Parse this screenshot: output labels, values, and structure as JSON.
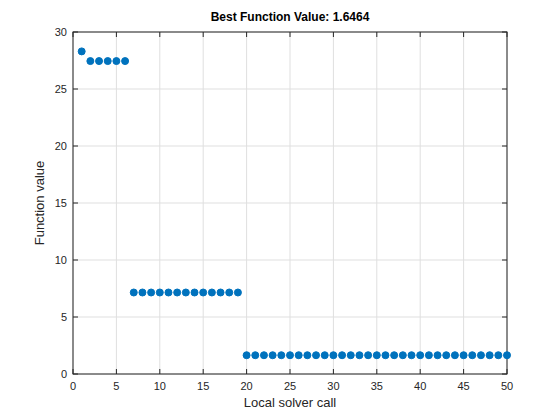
{
  "chart_data": {
    "type": "scatter",
    "title": "Best Function Value: 1.6464",
    "x_label": "Local solver call",
    "y_label": "Function value",
    "x": [
      1,
      2,
      3,
      4,
      5,
      6,
      7,
      8,
      9,
      10,
      11,
      12,
      13,
      14,
      15,
      16,
      17,
      18,
      19,
      20,
      21,
      22,
      23,
      24,
      25,
      26,
      27,
      28,
      29,
      30,
      31,
      32,
      33,
      34,
      35,
      36,
      37,
      38,
      39,
      40,
      41,
      42,
      43,
      44,
      45,
      46,
      47,
      48,
      49,
      50
    ],
    "values": [
      28.3,
      27.45,
      27.45,
      27.45,
      27.45,
      27.45,
      7.15,
      7.15,
      7.15,
      7.15,
      7.15,
      7.15,
      7.15,
      7.15,
      7.15,
      7.15,
      7.15,
      7.15,
      7.15,
      1.6464,
      1.6464,
      1.6464,
      1.6464,
      1.6464,
      1.6464,
      1.6464,
      1.6464,
      1.6464,
      1.6464,
      1.6464,
      1.6464,
      1.6464,
      1.6464,
      1.6464,
      1.6464,
      1.6464,
      1.6464,
      1.6464,
      1.6464,
      1.6464,
      1.6464,
      1.6464,
      1.6464,
      1.6464,
      1.6464,
      1.6464,
      1.6464,
      1.6464,
      1.6464,
      1.6464
    ],
    "xlim": [
      0,
      50
    ],
    "ylim": [
      0,
      30
    ],
    "xticks": [
      0,
      5,
      10,
      15,
      20,
      25,
      30,
      35,
      40,
      45,
      50
    ],
    "yticks": [
      0,
      5,
      10,
      15,
      20,
      25,
      30
    ],
    "grid": true,
    "color": "#0072bd",
    "marker": "circle"
  }
}
